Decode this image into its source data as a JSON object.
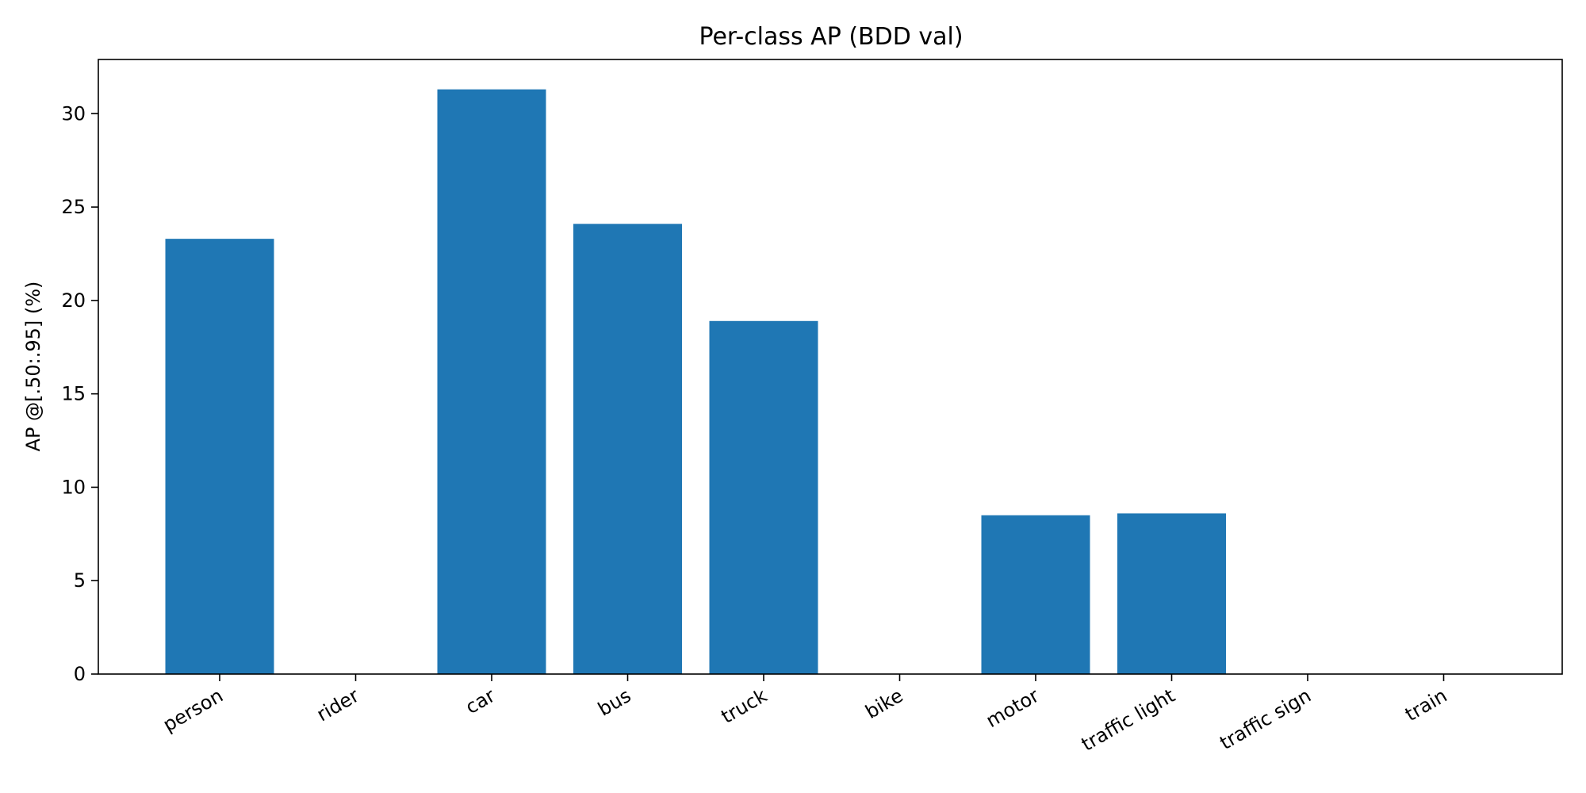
{
  "chart_data": {
    "type": "bar",
    "title": "Per-class AP (BDD val)",
    "xlabel": "",
    "ylabel": "AP @[.50:.95] (%)",
    "categories": [
      "person",
      "rider",
      "car",
      "bus",
      "truck",
      "bike",
      "motor",
      "traffic light",
      "traffic sign",
      "train"
    ],
    "values": [
      23.3,
      0,
      31.3,
      24.1,
      18.9,
      0,
      8.5,
      8.6,
      0,
      0
    ],
    "ylim": [
      0,
      32.9
    ],
    "yticks": [
      0,
      5,
      10,
      15,
      20,
      25,
      30
    ],
    "grid": false,
    "legend": "none",
    "bar_color": "#1f77b4"
  }
}
